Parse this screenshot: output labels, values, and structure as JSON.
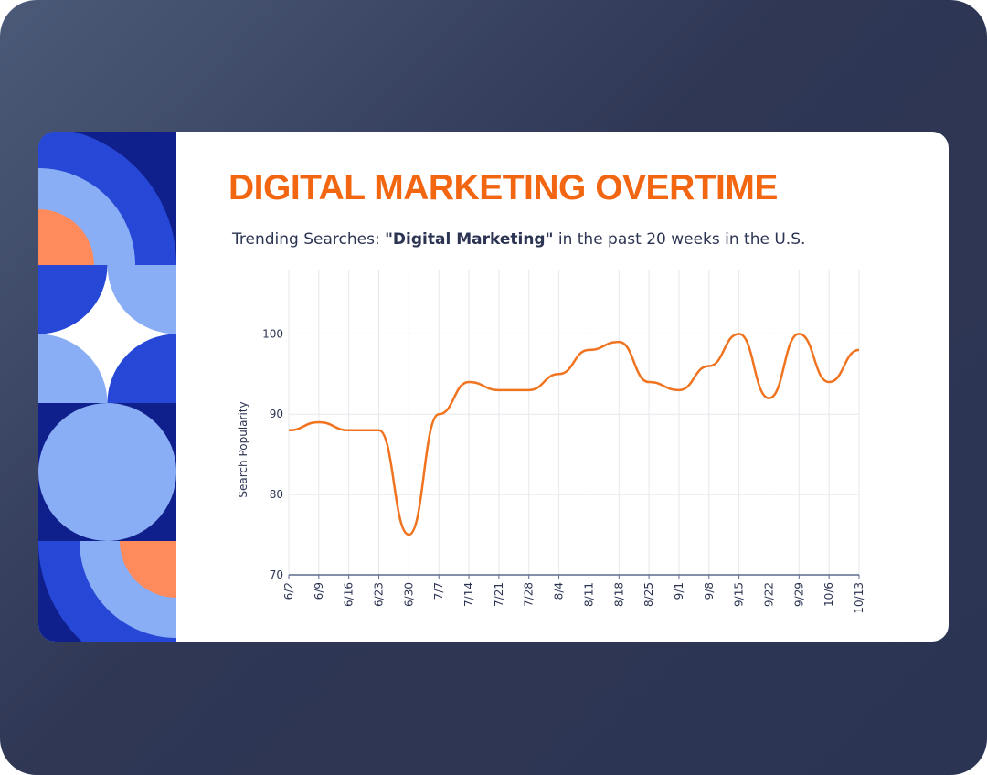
{
  "title": "DIGITAL MARKETING OVERTIME",
  "subtitle": {
    "lead": "Trending Searches: ",
    "emphasis": "\"Digital Marketing\"",
    "tail": " in the past 20 weeks in the U.S."
  },
  "chart_data": {
    "type": "line",
    "y_label": "Search Popularity",
    "categories": [
      "6/2",
      "6/9",
      "6/16",
      "6/23",
      "6/30",
      "7/7",
      "7/14",
      "7/21",
      "7/28",
      "8/4",
      "8/11",
      "8/18",
      "8/25",
      "9/1",
      "9/8",
      "9/15",
      "9/22",
      "9/29",
      "10/6",
      "10/13"
    ],
    "series": [
      {
        "name": "Digital Marketing",
        "color": "#f0731f",
        "values": [
          88,
          89,
          88,
          88,
          75,
          90,
          94,
          93,
          93,
          95,
          98,
          99,
          94,
          93,
          96,
          100,
          92,
          100,
          94,
          98
        ]
      }
    ],
    "ylim": [
      70,
      108
    ],
    "yticks": [
      70,
      80,
      90,
      100
    ],
    "grid": true
  }
}
